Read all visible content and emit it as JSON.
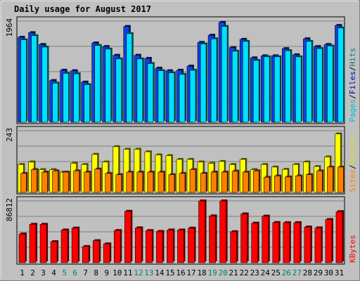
{
  "chart_data": {
    "type": "bar",
    "title": "Daily usage for August 2017",
    "colors": {
      "background": "#c0c0c0",
      "frame_border": "#808080",
      "title": "#0000c0",
      "hits": "#0080c0",
      "hits_face": "#00e0ff",
      "files": "#0000e0",
      "files_face": "#1030ff",
      "visits": "#ffff00",
      "sites": "#ff8000",
      "kbytes": "#ff0000",
      "weekend_label": "#00806a",
      "weekday_label": "#000000"
    },
    "days": [
      "1",
      "2",
      "3",
      "4",
      "5",
      "6",
      "7",
      "8",
      "9",
      "10",
      "11",
      "12",
      "13",
      "14",
      "15",
      "16",
      "17",
      "18",
      "19",
      "20",
      "21",
      "22",
      "23",
      "24",
      "25",
      "26",
      "27",
      "28",
      "29",
      "30",
      "31"
    ],
    "weekend_days": [
      "5",
      "6",
      "12",
      "13",
      "19",
      "20",
      "26",
      "27"
    ],
    "panels": [
      {
        "id": "hits_files",
        "max_label": "1964",
        "ylim": [
          0,
          1964
        ],
        "legend": [
          {
            "text": "Pages",
            "color": "#00c0d0"
          },
          {
            "text": "/",
            "color": "#000000"
          },
          {
            "text": "Files",
            "color": "#0000c0"
          },
          {
            "text": "/",
            "color": "#000000"
          },
          {
            "text": "Hits",
            "color": "#008080"
          }
        ],
        "series": [
          {
            "name": "Hits",
            "color": "#1040e0",
            "values": [
              1650,
              1740,
              1510,
              810,
              1010,
              1000,
              780,
              1540,
              1470,
              1300,
              1860,
              1300,
              1240,
              1050,
              1000,
              1010,
              1090,
              1550,
              1690,
              1940,
              1450,
              1610,
              1250,
              1290,
              1290,
              1430,
              1310,
              1620,
              1470,
              1510,
              1880
            ]
          },
          {
            "name": "Files",
            "color": "#00e0ff",
            "values": [
              1600,
              1680,
              1460,
              760,
              950,
              940,
              730,
              1490,
              1420,
              1230,
              1720,
              1230,
              1140,
              1000,
              960,
              930,
              1010,
              1520,
              1620,
              1860,
              1380,
              1570,
              1200,
              1270,
              1270,
              1390,
              1270,
              1570,
              1430,
              1480,
              1830
            ]
          }
        ]
      },
      {
        "id": "visits_sites",
        "max_label": "243",
        "ylim": [
          0,
          243
        ],
        "legend": [
          {
            "text": "Sites",
            "color": "#ff8000"
          },
          {
            "text": "/",
            "color": "#000000"
          },
          {
            "text": "Visits",
            "color": "#e0e000"
          }
        ],
        "series": [
          {
            "name": "Visits",
            "color": "#ffff00",
            "values": [
              110,
              120,
              90,
              90,
              80,
              115,
              110,
              150,
              120,
              180,
              170,
              170,
              160,
              148,
              145,
              130,
              130,
              120,
              115,
              122,
              110,
              130,
              90,
              110,
              100,
              91,
              110,
              120,
              102,
              140,
              230
            ]
          },
          {
            "name": "Sites",
            "color": "#ff8000",
            "values": [
              75,
              90,
              80,
              85,
              80,
              85,
              80,
              92,
              75,
              70,
              80,
              80,
              80,
              80,
              70,
              75,
              90,
              75,
              80,
              80,
              84,
              80,
              85,
              60,
              65,
              61,
              65,
              70,
              85,
              100,
              100
            ]
          }
        ]
      },
      {
        "id": "kbytes",
        "max_label": "86812",
        "ylim": [
          0,
          86812
        ],
        "legend": [
          {
            "text": "KBytes",
            "color": "#ff0000"
          }
        ],
        "series": [
          {
            "name": "KBytes",
            "color": "#ff0000",
            "values": [
              40400,
              54000,
              54000,
              29600,
              46000,
              48700,
              22800,
              31000,
              26500,
              45300,
              72200,
              49000,
              45200,
              44000,
              46000,
              46000,
              48600,
              86800,
              65800,
              86800,
              43600,
              68600,
              55600,
              65500,
              56500,
              56300,
              56300,
              50200,
              49000,
              60700,
              71800
            ]
          }
        ]
      }
    ]
  }
}
